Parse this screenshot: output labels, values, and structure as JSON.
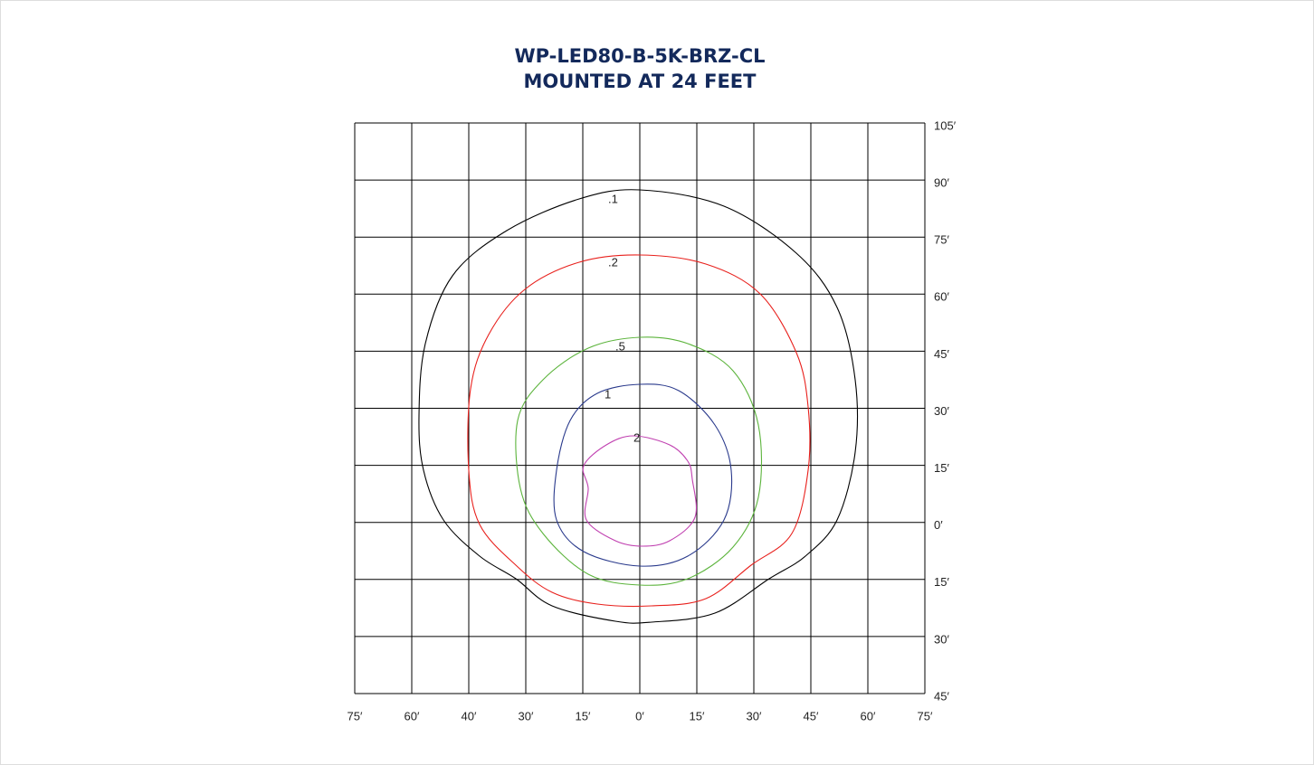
{
  "header": {
    "title_lines": [
      "WP-LED80-B-5K-BRZ-CL",
      "MOUNTED AT 24 FEET"
    ]
  },
  "y_labels": [
    "105′",
    "90′",
    "75′",
    "60′",
    "45′",
    "30′",
    "15′",
    "0′",
    "15′",
    "30′",
    "45′"
  ],
  "x_labels": [
    "75′",
    "60′",
    "40′",
    "30′",
    "15′",
    "0′",
    "15′",
    "30′",
    "45′",
    "60′",
    "75′"
  ],
  "contours": [
    {
      "label": ".1",
      "color": "#000000"
    },
    {
      "label": ".2",
      "color": "#e8201c"
    },
    {
      "label": ".5",
      "color": "#5cb43c"
    },
    {
      "label": "1",
      "color": "#2a3a8c"
    },
    {
      "label": "2",
      "color": "#c040b0"
    }
  ]
}
